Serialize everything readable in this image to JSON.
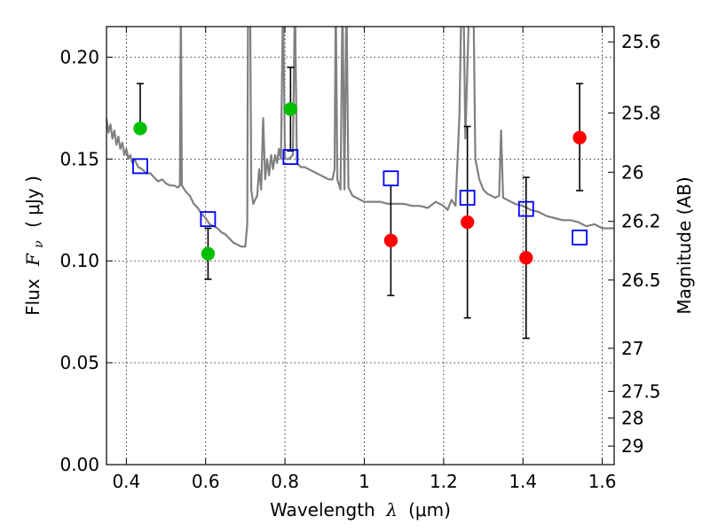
{
  "chart_data": {
    "type": "scatter",
    "xlabel": {
      "prefix": "Wavelength",
      "symbol": "λ",
      "unit": "(μm)"
    },
    "ylabel": {
      "prefix": "Flux",
      "symbol": "F",
      "subscript": "ν",
      "unit": "( μJy )"
    },
    "y2label": "Magnitude (AB)",
    "xlim": [
      0.35,
      1.63
    ],
    "ylim": [
      0.0,
      0.215
    ],
    "grid": true,
    "x_ticks": [
      {
        "value": 0.4,
        "label": "0.4"
      },
      {
        "value": 0.6,
        "label": "0.6"
      },
      {
        "value": 0.8,
        "label": "0.8"
      },
      {
        "value": 1.0,
        "label": "1"
      },
      {
        "value": 1.2,
        "label": "1.2"
      },
      {
        "value": 1.4,
        "label": "1.4"
      },
      {
        "value": 1.6,
        "label": "1.6"
      }
    ],
    "y_ticks": [
      {
        "value": 0.0,
        "label": "0.00"
      },
      {
        "value": 0.05,
        "label": "0.05"
      },
      {
        "value": 0.1,
        "label": "0.10"
      },
      {
        "value": 0.15,
        "label": "0.15"
      },
      {
        "value": 0.2,
        "label": "0.20"
      }
    ],
    "y2_ticks": [
      {
        "label": "25.6",
        "flux": 0.2075
      },
      {
        "label": "25.8",
        "flux": 0.1726
      },
      {
        "label": "26",
        "flux": 0.1435
      },
      {
        "label": "26.2",
        "flux": 0.1194
      },
      {
        "label": "26.5",
        "flux": 0.0906
      },
      {
        "label": "27",
        "flux": 0.0571
      },
      {
        "label": "27.5",
        "flux": 0.036
      },
      {
        "label": "28",
        "flux": 0.0229
      },
      {
        "label": "29",
        "flux": 0.0091
      }
    ],
    "series": [
      {
        "marker": "filled-circle",
        "color": "#00bf00",
        "points": [
          {
            "x": 0.435,
            "y": 0.165,
            "yerr_low": 0.165,
            "yerr_high": 0.187
          },
          {
            "x": 0.606,
            "y": 0.1035,
            "yerr_low": 0.091,
            "yerr_high": 0.116
          },
          {
            "x": 0.814,
            "y": 0.1745,
            "yerr_low": 0.154,
            "yerr_high": 0.195
          }
        ]
      },
      {
        "marker": "filled-circle",
        "color": "#ff0000",
        "points": [
          {
            "x": 1.067,
            "y": 0.11,
            "yerr_low": 0.083,
            "yerr_high": 0.137
          },
          {
            "x": 1.26,
            "y": 0.119,
            "yerr_low": 0.072,
            "yerr_high": 0.166
          },
          {
            "x": 1.408,
            "y": 0.1015,
            "yerr_low": 0.062,
            "yerr_high": 0.141
          },
          {
            "x": 1.543,
            "y": 0.1605,
            "yerr_low": 0.1345,
            "yerr_high": 0.187
          }
        ]
      },
      {
        "marker": "open-square",
        "color": "#0000ff",
        "points": [
          {
            "x": 0.435,
            "y": 0.1465
          },
          {
            "x": 0.606,
            "y": 0.1205
          },
          {
            "x": 0.814,
            "y": 0.151
          },
          {
            "x": 1.067,
            "y": 0.1405
          },
          {
            "x": 1.26,
            "y": 0.131
          },
          {
            "x": 1.408,
            "y": 0.1255
          },
          {
            "x": 1.543,
            "y": 0.1115
          }
        ]
      }
    ],
    "model_spectrum": {
      "color": "#808080",
      "points": [
        [
          0.35,
          0.17
        ],
        [
          0.355,
          0.163
        ],
        [
          0.36,
          0.167
        ],
        [
          0.365,
          0.16
        ],
        [
          0.37,
          0.164
        ],
        [
          0.375,
          0.157
        ],
        [
          0.38,
          0.161
        ],
        [
          0.385,
          0.155
        ],
        [
          0.39,
          0.158
        ],
        [
          0.395,
          0.152
        ],
        [
          0.4,
          0.155
        ],
        [
          0.405,
          0.15
        ],
        [
          0.41,
          0.152
        ],
        [
          0.415,
          0.148
        ],
        [
          0.42,
          0.15
        ],
        [
          0.43,
          0.146
        ],
        [
          0.44,
          0.145
        ],
        [
          0.45,
          0.143
        ],
        [
          0.46,
          0.143
        ],
        [
          0.47,
          0.141
        ],
        [
          0.48,
          0.139
        ],
        [
          0.49,
          0.14
        ],
        [
          0.5,
          0.138
        ],
        [
          0.51,
          0.137
        ],
        [
          0.52,
          0.137
        ],
        [
          0.53,
          0.136
        ],
        [
          0.535,
          0.137
        ],
        [
          0.5375,
          0.23
        ],
        [
          0.54,
          0.137
        ],
        [
          0.55,
          0.134
        ],
        [
          0.56,
          0.132
        ],
        [
          0.57,
          0.128
        ],
        [
          0.58,
          0.126
        ],
        [
          0.59,
          0.123
        ],
        [
          0.6,
          0.121
        ],
        [
          0.61,
          0.118
        ],
        [
          0.62,
          0.117
        ],
        [
          0.63,
          0.116
        ],
        [
          0.64,
          0.114
        ],
        [
          0.65,
          0.113
        ],
        [
          0.66,
          0.111
        ],
        [
          0.67,
          0.109
        ],
        [
          0.68,
          0.108
        ],
        [
          0.69,
          0.107
        ],
        [
          0.7,
          0.107
        ],
        [
          0.705,
          0.118
        ],
        [
          0.707,
          0.23
        ],
        [
          0.712,
          0.23
        ],
        [
          0.715,
          0.135
        ],
        [
          0.72,
          0.128
        ],
        [
          0.73,
          0.132
        ],
        [
          0.735,
          0.145
        ],
        [
          0.74,
          0.135
        ],
        [
          0.745,
          0.17
        ],
        [
          0.75,
          0.14
        ],
        [
          0.755,
          0.15
        ],
        [
          0.76,
          0.142
        ],
        [
          0.765,
          0.152
        ],
        [
          0.77,
          0.145
        ],
        [
          0.775,
          0.152
        ],
        [
          0.78,
          0.148
        ],
        [
          0.785,
          0.155
        ],
        [
          0.79,
          0.15
        ],
        [
          0.795,
          0.23
        ],
        [
          0.8,
          0.15
        ],
        [
          0.81,
          0.15
        ],
        [
          0.82,
          0.152
        ],
        [
          0.825,
          0.23
        ],
        [
          0.83,
          0.148
        ],
        [
          0.84,
          0.146
        ],
        [
          0.85,
          0.146
        ],
        [
          0.86,
          0.145
        ],
        [
          0.87,
          0.144
        ],
        [
          0.88,
          0.143
        ],
        [
          0.89,
          0.142
        ],
        [
          0.9,
          0.141
        ],
        [
          0.91,
          0.14
        ],
        [
          0.92,
          0.14
        ],
        [
          0.925,
          0.145
        ],
        [
          0.928,
          0.23
        ],
        [
          0.932,
          0.14
        ],
        [
          0.94,
          0.135
        ],
        [
          0.945,
          0.23
        ],
        [
          0.95,
          0.135
        ],
        [
          0.955,
          0.23
        ],
        [
          0.96,
          0.136
        ],
        [
          0.97,
          0.132
        ],
        [
          0.98,
          0.131
        ],
        [
          0.99,
          0.13
        ],
        [
          1.0,
          0.129
        ],
        [
          1.02,
          0.129
        ],
        [
          1.04,
          0.129
        ],
        [
          1.06,
          0.128
        ],
        [
          1.08,
          0.128
        ],
        [
          1.1,
          0.128
        ],
        [
          1.12,
          0.127
        ],
        [
          1.14,
          0.127
        ],
        [
          1.16,
          0.126
        ],
        [
          1.18,
          0.129
        ],
        [
          1.2,
          0.127
        ],
        [
          1.21,
          0.125
        ],
        [
          1.22,
          0.13
        ],
        [
          1.23,
          0.127
        ],
        [
          1.24,
          0.172
        ],
        [
          1.245,
          0.23
        ],
        [
          1.25,
          0.23
        ],
        [
          1.255,
          0.16
        ],
        [
          1.265,
          0.23
        ],
        [
          1.27,
          0.22
        ],
        [
          1.275,
          0.23
        ],
        [
          1.28,
          0.15
        ],
        [
          1.29,
          0.14
        ],
        [
          1.3,
          0.135
        ],
        [
          1.31,
          0.133
        ],
        [
          1.32,
          0.132
        ],
        [
          1.33,
          0.131
        ],
        [
          1.34,
          0.132
        ],
        [
          1.345,
          0.164
        ],
        [
          1.35,
          0.131
        ],
        [
          1.36,
          0.13
        ],
        [
          1.38,
          0.128
        ],
        [
          1.4,
          0.127
        ],
        [
          1.42,
          0.125
        ],
        [
          1.44,
          0.124
        ],
        [
          1.46,
          0.122
        ],
        [
          1.48,
          0.121
        ],
        [
          1.5,
          0.12
        ],
        [
          1.52,
          0.12
        ],
        [
          1.54,
          0.119
        ],
        [
          1.56,
          0.117
        ],
        [
          1.58,
          0.118
        ],
        [
          1.6,
          0.116
        ],
        [
          1.63,
          0.116
        ]
      ]
    }
  }
}
